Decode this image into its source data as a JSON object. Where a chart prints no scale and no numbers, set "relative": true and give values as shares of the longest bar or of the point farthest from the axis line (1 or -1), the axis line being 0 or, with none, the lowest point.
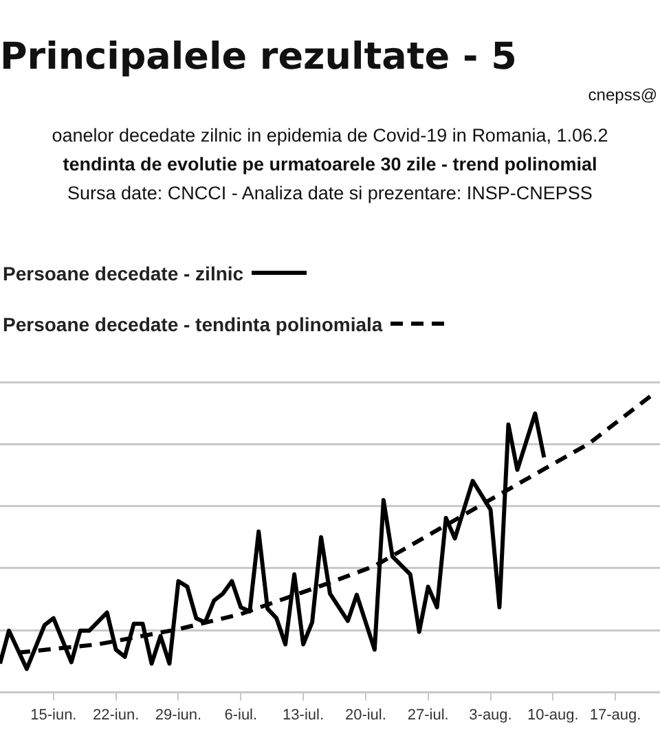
{
  "chart_data": {
    "type": "line",
    "title": "Principalele rezultate - 5",
    "subtitle": "oanelor decedate zilnic in epidemia de Covid-19 in Romania, 1.06.2",
    "annotations": [
      "tendinta de evolutie pe urmatoarele 30 zile - trend polinomial",
      "Sursa date: CNCCI  -  Analiza date si prezentare: INSP-CNEPSS",
      "cnepss@"
    ],
    "relative": true,
    "xlim": [
      "--06-09",
      "--08-22"
    ],
    "xticks": [
      {
        "value": "--06-15",
        "label": "15-iun."
      },
      {
        "value": "--06-22",
        "label": "22-iun."
      },
      {
        "value": "--06-29",
        "label": "29-iun."
      },
      {
        "value": "--07-06",
        "label": "6-iul."
      },
      {
        "value": "--07-13",
        "label": "13-iul."
      },
      {
        "value": "--07-20",
        "label": "20-iul."
      },
      {
        "value": "--07-27",
        "label": "27-iul."
      },
      {
        "value": "--08-03",
        "label": "3-aug."
      },
      {
        "value": "--08-10",
        "label": "10-aug."
      },
      {
        "value": "--08-17",
        "label": "17-aug."
      }
    ],
    "grid": "y",
    "legend": "top left",
    "marker": "none",
    "series": [
      {
        "name": "Persoane decedate - zilnic",
        "color": "#000000",
        "line_style": "solid",
        "x": [
          "--06-09",
          "--06-10",
          "--06-12",
          "--06-14",
          "--06-15",
          "--06-17",
          "--06-18",
          "--06-19",
          "--06-21",
          "--06-22",
          "--06-23",
          "--06-24",
          "--06-25",
          "--06-26",
          "--06-27",
          "--06-28",
          "--06-29",
          "--06-30",
          "--07-01",
          "--07-02",
          "--07-03",
          "--07-04",
          "--07-05",
          "--07-06",
          "--07-07",
          "--07-08",
          "--07-09",
          "--07-10",
          "--07-11",
          "--07-12",
          "--07-13",
          "--07-14",
          "--07-15",
          "--07-16",
          "--07-18",
          "--07-19",
          "--07-21",
          "--07-22",
          "--07-23",
          "--07-25",
          "--07-26",
          "--07-27",
          "--07-28",
          "--07-29",
          "--07-30",
          "--08-01",
          "--08-03",
          "--08-04",
          "--08-05",
          "--08-06",
          "--08-08",
          "--08-09"
        ],
        "values": [
          0.097,
          0.208,
          0.079,
          0.227,
          0.25,
          0.102,
          0.208,
          0.208,
          0.269,
          0.144,
          0.12,
          0.231,
          0.231,
          0.097,
          0.19,
          0.097,
          0.375,
          0.356,
          0.25,
          0.236,
          0.31,
          0.333,
          0.375,
          0.287,
          0.273,
          0.542,
          0.282,
          0.25,
          0.162,
          0.398,
          0.162,
          0.236,
          0.523,
          0.333,
          0.241,
          0.329,
          0.144,
          0.648,
          0.458,
          0.398,
          0.204,
          0.356,
          0.287,
          0.588,
          0.519,
          0.713,
          0.616,
          0.287,
          0.903,
          0.75,
          0.94,
          0.792
        ]
      },
      {
        "name": "Persoane decedate - tendinta polinomiala",
        "color": "#000000",
        "line_style": "dashed",
        "x": [
          "--06-11",
          "--06-20",
          "--06-29",
          "--07-06",
          "--07-16",
          "--07-21",
          "--08-04",
          "--08-14",
          "--08-21"
        ],
        "values": [
          0.134,
          0.162,
          0.213,
          0.264,
          0.37,
          0.426,
          0.667,
          0.838,
          1.0
        ]
      }
    ]
  }
}
